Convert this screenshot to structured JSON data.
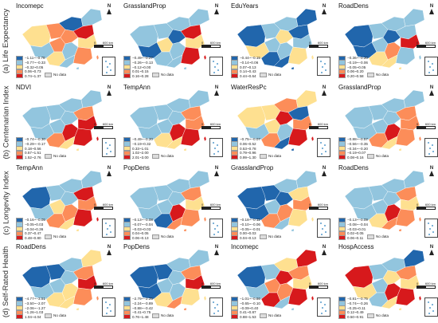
{
  "rows": [
    {
      "label": "(a) Life Expectancy",
      "panels": [
        {
          "title": "Incomepc",
          "legend": [
            "−1.11~−0.78",
            "−0.77~−0.33",
            "−0.32~0.05",
            "0.06~0.73",
            "0.74~1.37"
          ]
        },
        {
          "title": "GrasslandProp",
          "legend": [
            "−0.49~−0.27",
            "−0.26~−0.13",
            "−0.12~0.00",
            "0.01~0.15",
            "0.16~0.28"
          ]
        },
        {
          "title": "EduYears",
          "legend": [
            "−0.44~−0.15",
            "−0.14~0.06",
            "0.07~0.13",
            "0.14~0.43",
            "0.44~0.64"
          ]
        },
        {
          "title": "RoadDens",
          "legend": [
            "−0.36~−0.20",
            "−0.19~−0.06",
            "−0.05~0.05",
            "0.06~0.20",
            "0.20~0.58"
          ]
        }
      ]
    },
    {
      "label": "(b) Centenarian Index",
      "panels": [
        {
          "title": "NDVI",
          "legend": [
            "−0.74~−0.30",
            "−0.29~−0.17",
            "0.18~0.56",
            "0.57~1.51",
            "1.52~2.76"
          ]
        },
        {
          "title": "TempAnn",
          "legend": [
            "−0.49~−0.20",
            "−0.19~0.32",
            "0.33~1.01",
            "1.02~2.00",
            "2.01~3.00"
          ]
        },
        {
          "title": "WaterResPc",
          "legend": [
            "−0.75~−0.07",
            "0.06~0.52",
            "0.53~0.78",
            "0.79~0.96",
            "0.99~1.30"
          ]
        },
        {
          "title": "GrasslandProp",
          "legend": [
            "−0.88~−0.57",
            "−0.56~−0.35",
            "−0.34~−0.20",
            "−0.19~0.07",
            "0.08~0.16"
          ]
        }
      ]
    },
    {
      "label": "(c) Longevity Index",
      "panels": [
        {
          "title": "TempAnn",
          "legend": [
            "−0.16~−0.05",
            "−0.05~0.03",
            "−0.04~0.36",
            "0.37~0.47",
            "0.48~0.80"
          ]
        },
        {
          "title": "PopDens",
          "legend": [
            "−0.13~−0.08",
            "−0.07~−0.04",
            "−0.03~0.03",
            "0.04~0.05",
            "0.06~0.13"
          ]
        },
        {
          "title": "GrasslandProp",
          "legend": [
            "−0.18~−0.11",
            "−0.10~−0.06",
            "−0.05~−0.01",
            "0.00~0.03",
            "0.04~0.13"
          ]
        },
        {
          "title": "RoadDens",
          "legend": [
            "−0.13~−0.09",
            "−0.08~−0.04",
            "−0.03~0.01",
            "0.02~0.05",
            "0.06~0.11"
          ]
        }
      ]
    },
    {
      "label": "(d) Self-Rated Health",
      "panels": [
        {
          "title": "RoadDens",
          "legend": [
            "−4.77~−3.51",
            "−3.50~−2.07",
            "−2.06~−1.27",
            "−1.26~1.03",
            "1.04~4.04"
          ]
        },
        {
          "title": "PopDens",
          "legend": [
            "−2.79~−2.25",
            "−2.24~−0.89",
            "−0.88~−0.42",
            "−0.41~0.75",
            "0.76~1.48"
          ]
        },
        {
          "title": "Incomepc",
          "legend": [
            "−1.01~−0.66",
            "−0.65~−0.10",
            "−0.09~0.40",
            "0.41~0.87",
            "0.88~1.53"
          ]
        },
        {
          "title": "HospAccess",
          "legend": [
            "−0.81~−0.75",
            "−0.74~−0.26",
            "−0.25~0.11",
            "0.12~0.49",
            "0.50~0.91"
          ]
        }
      ]
    }
  ],
  "common": {
    "no_data": "No data",
    "north": "N",
    "scale_0": "0",
    "scale_600": "600 km"
  },
  "palette": [
    "#2166ac",
    "#92c5de",
    "#fee090",
    "#fc8d59",
    "#d7191c"
  ],
  "maps": [
    [
      "#fee090",
      "#fc8d59",
      "#2166ac",
      "#92c5de",
      "#92c5de",
      "#fc8d59",
      "#fee090",
      "#fc8d59",
      "#d7191c",
      "#92c5de",
      "#fee090",
      "#fc8d59",
      "#92c5de"
    ],
    [
      "#92c5de",
      "#92c5de",
      "#92c5de",
      "#92c5de",
      "#2166ac",
      "#fee090",
      "#92c5de",
      "#2166ac",
      "#d7191c",
      "#92c5de",
      "#fee090",
      "#d7191c",
      "#92c5de"
    ],
    [
      "#2166ac",
      "#92c5de",
      "#92c5de",
      "#2166ac",
      "#fee090",
      "#92c5de",
      "#2166ac",
      "#fee090",
      "#2166ac",
      "#92c5de",
      "#92c5de",
      "#fee090",
      "#2166ac"
    ],
    [
      "#2166ac",
      "#92c5de",
      "#92c5de",
      "#92c5de",
      "#2166ac",
      "#92c5de",
      "#fee090",
      "#2166ac",
      "#92c5de",
      "#fc8d59",
      "#d7191c",
      "#92c5de",
      "#fee090"
    ],
    [
      "#92c5de",
      "#92c5de",
      "#92c5de",
      "#92c5de",
      "#92c5de",
      "#92c5de",
      "#fc8d59",
      "#92c5de",
      "#fc8d59",
      "#d7191c",
      "#d7191c",
      "#d7191c",
      "#fee090"
    ],
    [
      "#92c5de",
      "#92c5de",
      "#92c5de",
      "#92c5de",
      "#92c5de",
      "#92c5de",
      "#fee090",
      "#92c5de",
      "#fc8d59",
      "#d7191c",
      "#fc8d59",
      "#d7191c",
      "#fee090"
    ],
    [
      "#fee090",
      "#fee090",
      "#fc8d59",
      "#fee090",
      "#92c5de",
      "#fee090",
      "#fc8d59",
      "#d7191c",
      "#2166ac",
      "#92c5de",
      "#fc8d59",
      "#d7191c",
      "#2166ac"
    ],
    [
      "#92c5de",
      "#92c5de",
      "#92c5de",
      "#92c5de",
      "#92c5de",
      "#92c5de",
      "#fc8d59",
      "#92c5de",
      "#fc8d59",
      "#d7191c",
      "#fc8d59",
      "#fc8d59",
      "#fee090"
    ],
    [
      "#2166ac",
      "#92c5de",
      "#92c5de",
      "#92c5de",
      "#92c5de",
      "#fee090",
      "#fc8d59",
      "#92c5de",
      "#d7191c",
      "#fc8d59",
      "#fc8d59",
      "#d7191c",
      "#fee090"
    ],
    [
      "#92c5de",
      "#92c5de",
      "#92c5de",
      "#92c5de",
      "#92c5de",
      "#92c5de",
      "#2166ac",
      "#92c5de",
      "#fc8d59",
      "#d7191c",
      "#fee090",
      "#fc8d59",
      "#fc8d59"
    ],
    [
      "#2166ac",
      "#2166ac",
      "#92c5de",
      "#92c5de",
      "#2166ac",
      "#92c5de",
      "#fc8d59",
      "#2166ac",
      "#fee090",
      "#fc8d59",
      "#fc8d59",
      "#fee090",
      "#92c5de"
    ],
    [
      "#92c5de",
      "#92c5de",
      "#92c5de",
      "#92c5de",
      "#92c5de",
      "#92c5de",
      "#fee090",
      "#92c5de",
      "#fc8d59",
      "#d7191c",
      "#fee090",
      "#fc8d59",
      "#fc8d59"
    ],
    [
      "#2166ac",
      "#2166ac",
      "#92c5de",
      "#fee090",
      "#92c5de",
      "#92c5de",
      "#fee090",
      "#92c5de",
      "#fc8d59",
      "#fee090",
      "#d7191c",
      "#fc8d59",
      "#fee090"
    ],
    [
      "#2166ac",
      "#2166ac",
      "#92c5de",
      "#92c5de",
      "#2166ac",
      "#92c5de",
      "#fee090",
      "#92c5de",
      "#fc8d59",
      "#92c5de",
      "#d7191c",
      "#fee090",
      "#fc8d59"
    ],
    [
      "#2166ac",
      "#92c5de",
      "#fee090",
      "#d7191c",
      "#92c5de",
      "#fc8d59",
      "#d7191c",
      "#d7191c",
      "#fc8d59",
      "#fc8d59",
      "#fee090",
      "#d7191c",
      "#92c5de"
    ],
    [
      "#d7191c",
      "#92c5de",
      "#92c5de",
      "#2166ac",
      "#fee090",
      "#92c5de",
      "#92c5de",
      "#fee090",
      "#fc8d59",
      "#d7191c",
      "#fee090",
      "#d7191c",
      "#fee090"
    ]
  ]
}
